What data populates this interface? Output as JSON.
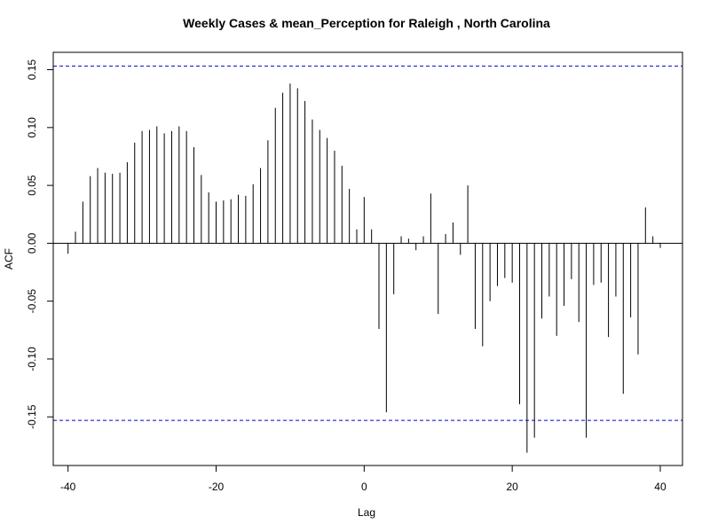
{
  "chart_data": {
    "type": "bar",
    "title": "Weekly Cases & mean_Perception for Raleigh , North Carolina",
    "xlabel": "Lag",
    "ylabel": "ACF",
    "xlim": [
      -42,
      43
    ],
    "ylim": [
      -0.192,
      0.165
    ],
    "x_ticks": [
      -40,
      -20,
      0,
      20,
      40
    ],
    "y_ticks": [
      -0.15,
      -0.1,
      -0.05,
      0.0,
      0.05,
      0.1,
      0.15
    ],
    "y_tick_labels": [
      "-0.15",
      "-0.10",
      "-0.05",
      "0.00",
      "0.05",
      "0.10",
      "0.15"
    ],
    "confidence_bounds": [
      0.153,
      -0.153
    ],
    "colors": {
      "bars": "#000000",
      "bounds": "#0000cc",
      "zero_line": "#000000"
    },
    "lags": [
      -40,
      -39,
      -38,
      -37,
      -36,
      -35,
      -34,
      -33,
      -32,
      -31,
      -30,
      -29,
      -28,
      -27,
      -26,
      -25,
      -24,
      -23,
      -22,
      -21,
      -20,
      -19,
      -18,
      -17,
      -16,
      -15,
      -14,
      -13,
      -12,
      -11,
      -10,
      -9,
      -8,
      -7,
      -6,
      -5,
      -4,
      -3,
      -2,
      -1,
      0,
      1,
      2,
      3,
      4,
      5,
      6,
      7,
      8,
      9,
      10,
      11,
      12,
      13,
      14,
      15,
      16,
      17,
      18,
      19,
      20,
      21,
      22,
      23,
      24,
      25,
      26,
      27,
      28,
      29,
      30,
      31,
      32,
      33,
      34,
      35,
      36,
      37,
      38,
      39,
      40
    ],
    "values": [
      -0.009,
      0.01,
      0.036,
      0.058,
      0.065,
      0.061,
      0.06,
      0.061,
      0.07,
      0.087,
      0.097,
      0.098,
      0.101,
      0.095,
      0.097,
      0.101,
      0.097,
      0.083,
      0.059,
      0.044,
      0.036,
      0.037,
      0.038,
      0.042,
      0.041,
      0.051,
      0.065,
      0.089,
      0.117,
      0.13,
      0.138,
      0.134,
      0.123,
      0.107,
      0.098,
      0.091,
      0.08,
      0.067,
      0.047,
      0.012,
      0.04,
      0.012,
      -0.074,
      -0.146,
      -0.044,
      0.006,
      0.004,
      -0.006,
      0.006,
      0.043,
      -0.061,
      0.008,
      0.018,
      -0.01,
      0.05,
      -0.074,
      -0.089,
      -0.05,
      -0.037,
      -0.03,
      -0.034,
      -0.139,
      -0.181,
      -0.168,
      -0.065,
      -0.046,
      -0.08,
      -0.054,
      -0.031,
      -0.068,
      -0.168,
      -0.036,
      -0.034,
      -0.081,
      -0.046,
      -0.13,
      -0.064,
      -0.096,
      0.031,
      0.006,
      -0.004
    ]
  }
}
